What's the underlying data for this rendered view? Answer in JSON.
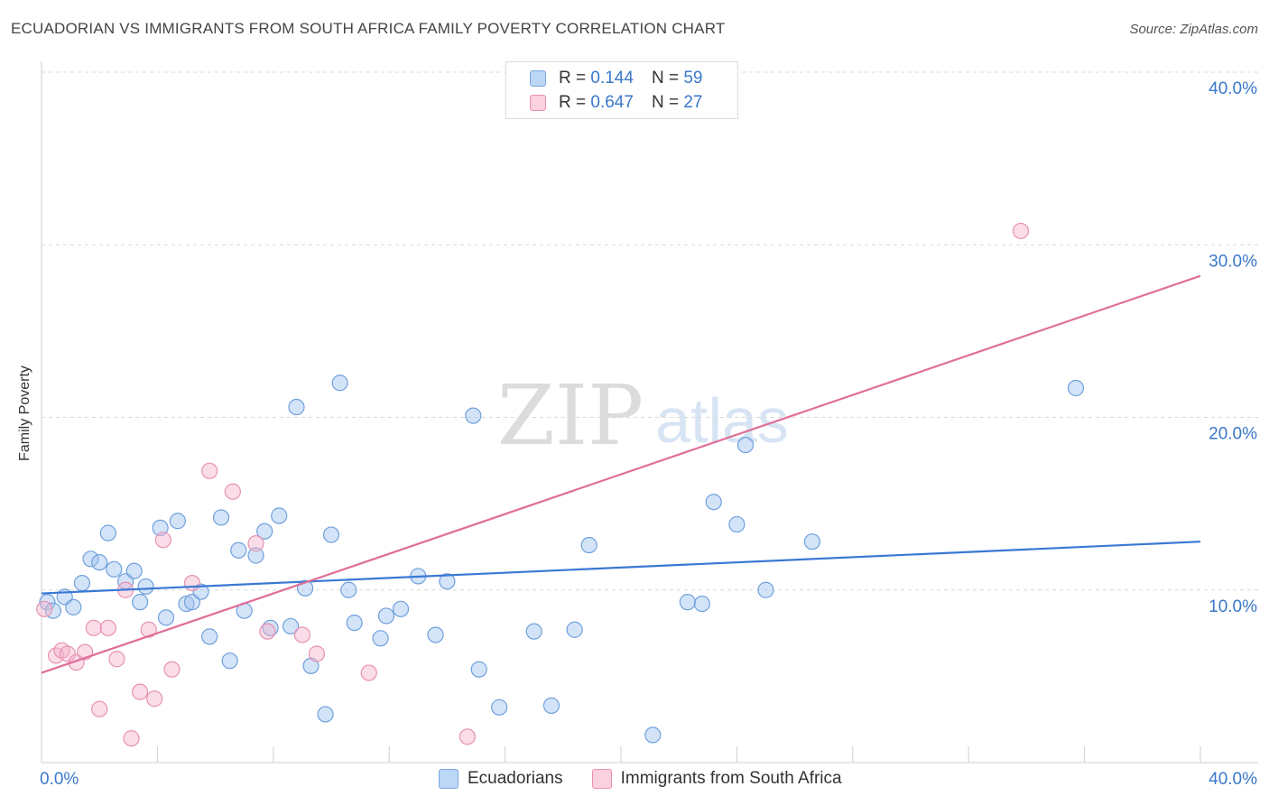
{
  "header": {
    "title": "ECUADORIAN VS IMMIGRANTS FROM SOUTH AFRICA FAMILY POVERTY CORRELATION CHART",
    "source": "Source: ZipAtlas.com"
  },
  "watermark": {
    "zip": "ZIP",
    "atlas": "atlas"
  },
  "legend": {
    "r_label": "R =",
    "n_label": "N =",
    "entries": [
      {
        "name": "Ecuadorians",
        "r": "0.144",
        "n": "59",
        "color": "#a9c8f0",
        "stroke": "#7aa7de"
      },
      {
        "name": "Immigrants from South Africa",
        "r": "0.647",
        "n": "27",
        "color": "#f7bcd0",
        "stroke": "#e98fb0"
      }
    ]
  },
  "chart_data": {
    "type": "scatter",
    "title": "ECUADORIAN VS IMMIGRANTS FROM SOUTH AFRICA FAMILY POVERTY CORRELATION CHART",
    "xlabel": "",
    "ylabel": "Family Poverty",
    "xlim": [
      0,
      40
    ],
    "ylim": [
      0,
      40
    ],
    "x_tick_labels": [
      "0.0%",
      "40.0%"
    ],
    "y_tick_labels": [
      "10.0%",
      "20.0%",
      "30.0%",
      "40.0%"
    ],
    "y_ticks": [
      10,
      20,
      30,
      40
    ],
    "grid": "horizontal dashed",
    "legend_position": "top-center",
    "series": [
      {
        "name": "Ecuadorians",
        "color": "#3a78d4",
        "fill": "rgba(160,195,240,0.45)",
        "stroke": "#6fa0dc",
        "trend": {
          "x": [
            0,
            40
          ],
          "y": [
            9.8,
            12.8
          ]
        },
        "points": [
          [
            0.2,
            9.3
          ],
          [
            0.4,
            8.8
          ],
          [
            0.8,
            9.6
          ],
          [
            1.1,
            9.0
          ],
          [
            1.4,
            10.4
          ],
          [
            1.7,
            11.8
          ],
          [
            2.0,
            11.6
          ],
          [
            2.3,
            13.3
          ],
          [
            2.5,
            11.2
          ],
          [
            2.9,
            10.5
          ],
          [
            3.2,
            11.1
          ],
          [
            3.4,
            9.3
          ],
          [
            3.6,
            10.2
          ],
          [
            4.1,
            13.6
          ],
          [
            4.3,
            8.4
          ],
          [
            4.7,
            14.0
          ],
          [
            5.0,
            9.2
          ],
          [
            5.2,
            9.3
          ],
          [
            5.5,
            9.9
          ],
          [
            5.8,
            7.3
          ],
          [
            6.2,
            14.2
          ],
          [
            6.5,
            5.9
          ],
          [
            6.8,
            12.3
          ],
          [
            7.0,
            8.8
          ],
          [
            7.4,
            12.0
          ],
          [
            7.7,
            13.4
          ],
          [
            7.9,
            7.8
          ],
          [
            8.2,
            14.3
          ],
          [
            8.6,
            7.9
          ],
          [
            8.8,
            20.6
          ],
          [
            9.1,
            10.1
          ],
          [
            9.3,
            5.6
          ],
          [
            9.8,
            2.8
          ],
          [
            10.0,
            13.2
          ],
          [
            10.3,
            22.0
          ],
          [
            10.6,
            10.0
          ],
          [
            10.8,
            8.1
          ],
          [
            11.7,
            7.2
          ],
          [
            11.9,
            8.5
          ],
          [
            12.4,
            8.9
          ],
          [
            13.0,
            10.8
          ],
          [
            13.6,
            7.4
          ],
          [
            14.0,
            10.5
          ],
          [
            14.9,
            20.1
          ],
          [
            15.1,
            5.4
          ],
          [
            15.8,
            3.2
          ],
          [
            17.0,
            7.6
          ],
          [
            17.6,
            3.3
          ],
          [
            18.4,
            7.7
          ],
          [
            18.9,
            12.6
          ],
          [
            21.1,
            1.6
          ],
          [
            22.3,
            9.3
          ],
          [
            22.8,
            9.2
          ],
          [
            23.2,
            15.1
          ],
          [
            24.0,
            13.8
          ],
          [
            24.3,
            18.4
          ],
          [
            25.0,
            10.0
          ],
          [
            26.6,
            12.8
          ],
          [
            35.7,
            21.7
          ]
        ]
      },
      {
        "name": "Immigrants from South Africa",
        "color": "#e06e98",
        "fill": "rgba(245,180,205,0.45)",
        "stroke": "#e792b2",
        "trend": {
          "x": [
            0,
            40
          ],
          "y": [
            5.2,
            28.2
          ]
        },
        "points": [
          [
            0.1,
            8.9
          ],
          [
            0.5,
            6.2
          ],
          [
            0.7,
            6.5
          ],
          [
            0.9,
            6.3
          ],
          [
            1.2,
            5.8
          ],
          [
            1.5,
            6.4
          ],
          [
            1.8,
            7.8
          ],
          [
            2.0,
            3.1
          ],
          [
            2.3,
            7.8
          ],
          [
            2.6,
            6.0
          ],
          [
            2.9,
            10.0
          ],
          [
            3.1,
            1.4
          ],
          [
            3.4,
            4.1
          ],
          [
            3.7,
            7.7
          ],
          [
            3.9,
            3.7
          ],
          [
            4.2,
            12.9
          ],
          [
            4.5,
            5.4
          ],
          [
            5.2,
            10.4
          ],
          [
            5.8,
            16.9
          ],
          [
            6.6,
            15.7
          ],
          [
            7.4,
            12.7
          ],
          [
            7.8,
            7.6
          ],
          [
            9.0,
            7.4
          ],
          [
            9.5,
            6.3
          ],
          [
            11.3,
            5.2
          ],
          [
            14.7,
            1.5
          ],
          [
            33.8,
            30.8
          ]
        ]
      }
    ]
  }
}
